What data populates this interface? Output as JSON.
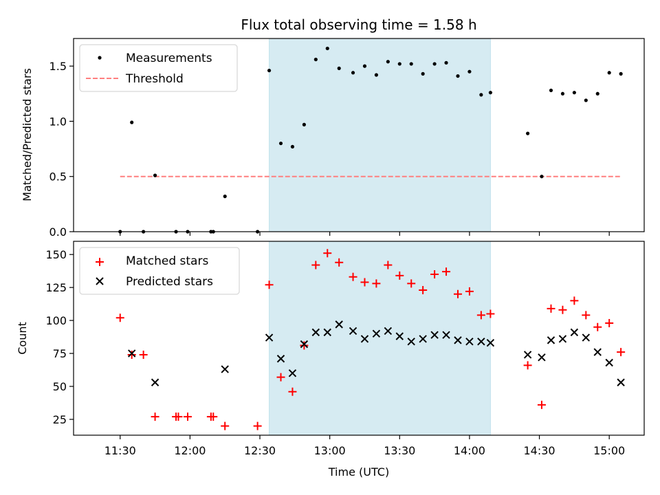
{
  "chart_data": [
    {
      "type": "scatter",
      "title": "Flux total observing time = 1.58 h",
      "xlabel": "",
      "ylabel": "Matched/Predicted stars",
      "ylim": [
        0,
        1.75
      ],
      "yticks": [
        0.0,
        0.5,
        1.0,
        1.5
      ],
      "ytick_labels": [
        "0.0",
        "0.5",
        "1.0",
        "1.5"
      ],
      "grid": false,
      "legend": "top-left",
      "shaded_interval": {
        "from": "12:34",
        "to": "14:09",
        "color": "#add8e6"
      },
      "series": [
        {
          "name": "Measurements",
          "marker": "dot",
          "color": "#000000",
          "x": [
            "11:30",
            "11:35",
            "11:40",
            "11:45",
            "11:54",
            "11:59",
            "12:09",
            "12:10",
            "12:15",
            "12:29",
            "12:34",
            "12:39",
            "12:44",
            "12:49",
            "12:54",
            "12:59",
            "13:04",
            "13:10",
            "13:15",
            "13:20",
            "13:25",
            "13:30",
            "13:35",
            "13:40",
            "13:45",
            "13:50",
            "13:55",
            "14:00",
            "14:05",
            "14:09",
            "14:25",
            "14:31",
            "14:35",
            "14:40",
            "14:45",
            "14:50",
            "14:55",
            "15:00",
            "15:05"
          ],
          "y": [
            0.0,
            0.99,
            0.0,
            0.51,
            0.0,
            0.0,
            0.0,
            0.0,
            0.32,
            0.0,
            1.46,
            0.8,
            0.77,
            0.97,
            1.56,
            1.66,
            1.48,
            1.44,
            1.5,
            1.42,
            1.54,
            1.52,
            1.52,
            1.43,
            1.52,
            1.53,
            1.41,
            1.45,
            1.24,
            1.26,
            0.89,
            0.5,
            1.28,
            1.25,
            1.26,
            1.19,
            1.25,
            1.44,
            1.43
          ]
        },
        {
          "name": "Threshold",
          "marker": "dashed-line",
          "color": "#ff7f7f",
          "x": [
            "11:30",
            "15:05"
          ],
          "y": [
            0.5,
            0.5
          ]
        }
      ]
    },
    {
      "type": "scatter",
      "title": "",
      "xlabel": "Time (UTC)",
      "ylabel": "Count",
      "ylim": [
        13,
        160
      ],
      "yticks": [
        25,
        50,
        75,
        100,
        125,
        150
      ],
      "ytick_labels": [
        "25",
        "50",
        "75",
        "100",
        "125",
        "150"
      ],
      "xlim": [
        "11:10",
        "15:15"
      ],
      "xticks": [
        "11:30",
        "12:00",
        "12:30",
        "13:00",
        "13:30",
        "14:00",
        "14:30",
        "15:00"
      ],
      "xtick_labels": [
        "11:30",
        "12:00",
        "12:30",
        "13:00",
        "13:30",
        "14:00",
        "14:30",
        "15:00"
      ],
      "grid": false,
      "legend": "top-left",
      "shaded_interval": {
        "from": "12:34",
        "to": "14:09",
        "color": "#add8e6"
      },
      "series": [
        {
          "name": "Matched stars",
          "marker": "plus",
          "color": "#ff0000",
          "x": [
            "11:30",
            "11:35",
            "11:40",
            "11:45",
            "11:54",
            "11:55",
            "11:59",
            "12:09",
            "12:10",
            "12:15",
            "12:29",
            "12:34",
            "12:39",
            "12:44",
            "12:49",
            "12:54",
            "12:59",
            "13:04",
            "13:10",
            "13:15",
            "13:20",
            "13:25",
            "13:30",
            "13:35",
            "13:40",
            "13:45",
            "13:50",
            "13:55",
            "14:00",
            "14:05",
            "14:09",
            "14:25",
            "14:31",
            "14:35",
            "14:40",
            "14:45",
            "14:50",
            "14:55",
            "15:00",
            "15:05"
          ],
          "y": [
            102,
            74,
            74,
            27,
            27,
            27,
            27,
            27,
            27,
            20,
            20,
            127,
            57,
            46,
            81,
            142,
            151,
            144,
            133,
            129,
            128,
            142,
            134,
            128,
            123,
            135,
            137,
            120,
            122,
            104,
            105,
            66,
            36,
            109,
            108,
            115,
            104,
            95,
            98,
            76
          ]
        },
        {
          "name": "Predicted stars",
          "marker": "x",
          "color": "#000000",
          "x": [
            "11:35",
            "11:45",
            "12:15",
            "12:34",
            "12:39",
            "12:44",
            "12:49",
            "12:54",
            "12:59",
            "13:04",
            "13:10",
            "13:15",
            "13:20",
            "13:25",
            "13:30",
            "13:35",
            "13:40",
            "13:45",
            "13:50",
            "13:55",
            "14:00",
            "14:05",
            "14:09",
            "14:25",
            "14:31",
            "14:35",
            "14:40",
            "14:45",
            "14:50",
            "14:55",
            "15:00",
            "15:05"
          ],
          "y": [
            75,
            53,
            63,
            87,
            71,
            60,
            82,
            91,
            91,
            97,
            92,
            86,
            90,
            92,
            88,
            84,
            86,
            89,
            89,
            85,
            84,
            84,
            83,
            74,
            72,
            85,
            86,
            91,
            87,
            76,
            68,
            53
          ]
        }
      ]
    }
  ]
}
